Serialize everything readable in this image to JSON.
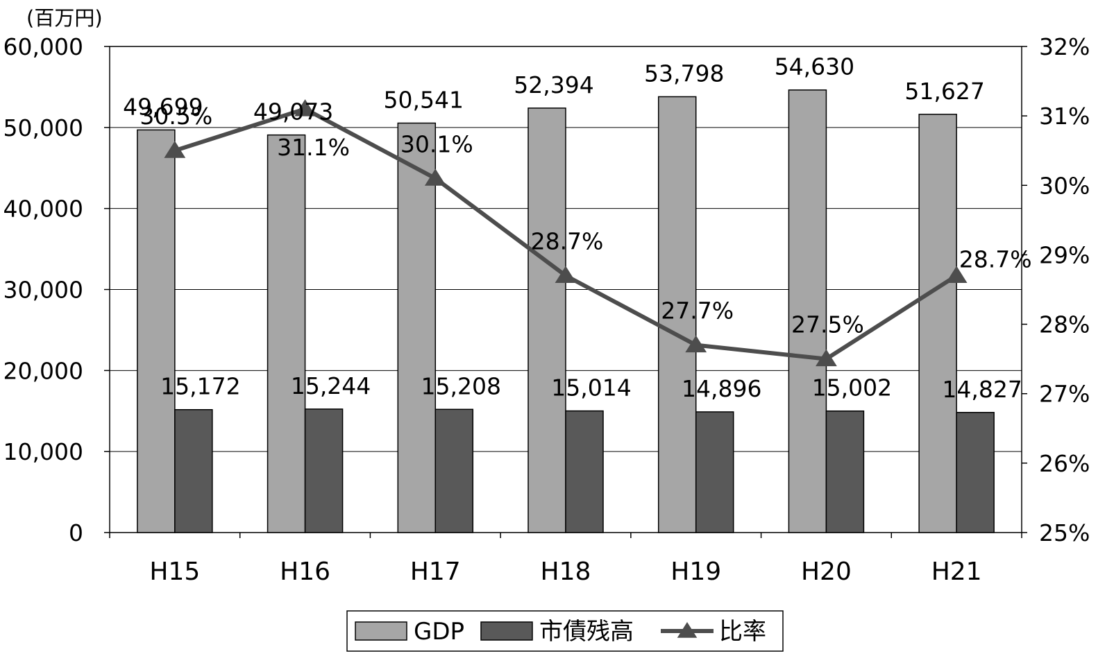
{
  "chart_data": {
    "type": "bar",
    "y_unit_label": "(百万円)",
    "categories": [
      "H15",
      "H16",
      "H17",
      "H18",
      "H19",
      "H20",
      "H21"
    ],
    "series": [
      {
        "name": "GDP",
        "type": "bar",
        "axis": "left",
        "color": "#a6a6a6",
        "values": [
          49699,
          49073,
          50541,
          52394,
          53798,
          54630,
          51627
        ],
        "labels": [
          "49,699",
          "49,073",
          "50,541",
          "52,394",
          "53,798",
          "54,630",
          "51,627"
        ]
      },
      {
        "name": "市債残高",
        "type": "bar",
        "axis": "left",
        "color": "#595959",
        "values": [
          15172,
          15244,
          15208,
          15014,
          14896,
          15002,
          14827
        ],
        "labels": [
          "15,172",
          "15,244",
          "15,208",
          "15,014",
          "14,896",
          "15,002",
          "14,827"
        ]
      },
      {
        "name": "比率",
        "type": "line",
        "axis": "right",
        "color": "#4d4d4d",
        "marker": "triangle",
        "values": [
          30.5,
          31.1,
          30.1,
          28.7,
          27.7,
          27.5,
          28.7
        ],
        "labels": [
          "30.5%",
          "31.1%",
          "30.1%",
          "28.7%",
          "27.7%",
          "27.5%",
          "28.7%"
        ]
      }
    ],
    "y_left": {
      "range": [
        0,
        60000
      ],
      "ticks": [
        0,
        10000,
        20000,
        30000,
        40000,
        50000,
        60000
      ],
      "tick_labels": [
        "0",
        "10,000",
        "20,000",
        "30,000",
        "40,000",
        "50,000",
        "60,000"
      ]
    },
    "y_right": {
      "range": [
        25,
        32
      ],
      "ticks": [
        25,
        26,
        27,
        28,
        29,
        30,
        31,
        32
      ],
      "tick_labels": [
        "25%",
        "26%",
        "27%",
        "28%",
        "29%",
        "30%",
        "31%",
        "32%"
      ]
    },
    "grid": true,
    "legend_position": "bottom-center"
  }
}
